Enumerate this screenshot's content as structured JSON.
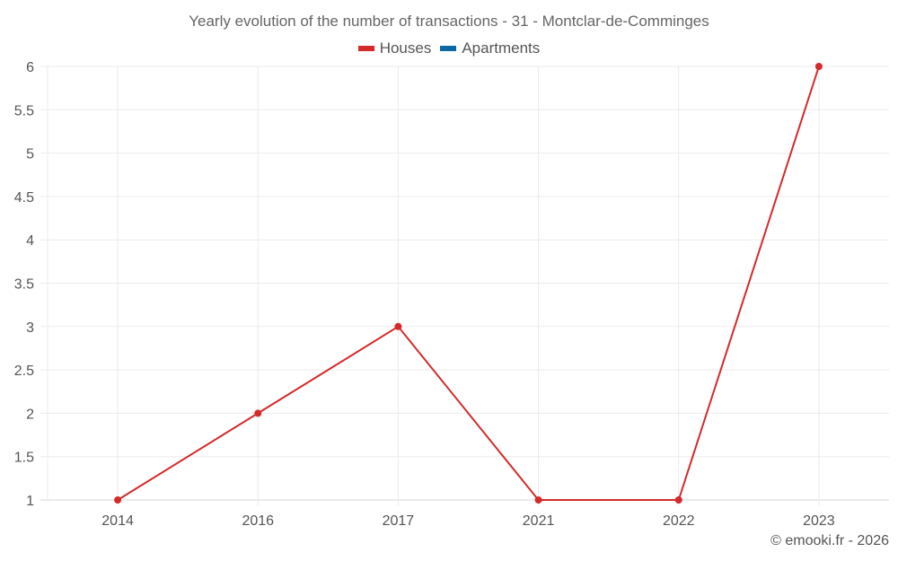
{
  "chart_data": {
    "type": "line",
    "title": "Yearly evolution of the number of transactions - 31 - Montclar-de-Comminges",
    "xlabel": "",
    "ylabel": "",
    "categories": [
      "2014",
      "2016",
      "2017",
      "2021",
      "2022",
      "2023"
    ],
    "series": [
      {
        "name": "Houses",
        "color": "#d42a2a",
        "values": [
          1,
          2,
          3,
          1,
          1,
          6
        ]
      },
      {
        "name": "Apartments",
        "color": "#0b6aa2",
        "values": []
      }
    ],
    "ylim": [
      1,
      6
    ],
    "yticks": [
      "1",
      "1.5",
      "2",
      "2.5",
      "3",
      "3.5",
      "4",
      "4.5",
      "5",
      "5.5",
      "6"
    ],
    "grid": true,
    "legend_position": "top"
  },
  "legend": [
    {
      "label": "Houses",
      "color": "#d42a2a"
    },
    {
      "label": "Apartments",
      "color": "#0b6aa2"
    }
  ],
  "credit": "© emooki.fr - 2026"
}
